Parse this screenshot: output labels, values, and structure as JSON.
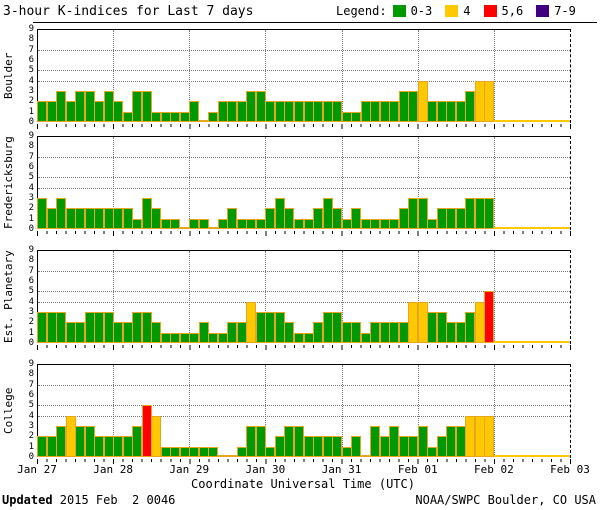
{
  "title": "3-hour K-indices for Last 7 days",
  "legend": {
    "label": "Legend:",
    "items": [
      {
        "label": "0-3",
        "color": "#009A00"
      },
      {
        "label": "4",
        "color": "#FFC800"
      },
      {
        "label": "5,6",
        "color": "#FF0000"
      },
      {
        "label": "7-9",
        "color": "#400080"
      }
    ]
  },
  "colors": {
    "bar_outline": "#E8A520",
    "gridline": "#787878",
    "axis": "#000000"
  },
  "y_axis": {
    "ticks": [
      "9",
      "8",
      "7",
      "6",
      "5",
      "4",
      "3",
      "2",
      "1",
      "0"
    ],
    "range": [
      0,
      9
    ],
    "dotted_gridline_values": [
      4,
      5,
      7
    ]
  },
  "x_axis": {
    "day_labels": [
      "Jan 27",
      "Jan 28",
      "Jan 29",
      "Jan 30",
      "Jan 31",
      "Feb 01",
      "Feb 02",
      "Feb 03"
    ],
    "axis_label": "Coordinate Universal Time (UTC)"
  },
  "footer": {
    "updated_label": "Updated",
    "updated_value": " 2015 Feb  2 0046",
    "credit": "NOAA/SWPC Boulder, CO USA"
  },
  "chart_data": [
    {
      "type": "bar",
      "station": "Boulder",
      "ylim": [
        0,
        9
      ],
      "bars_per_day": 8,
      "days": [
        "Jan 27",
        "Jan 28",
        "Jan 29",
        "Jan 30",
        "Jan 31",
        "Feb 01"
      ],
      "values": [
        2,
        2,
        3,
        2,
        3,
        3,
        2,
        3,
        2,
        1,
        3,
        3,
        1,
        1,
        1,
        1,
        2,
        0,
        1,
        2,
        2,
        2,
        3,
        3,
        2,
        2,
        2,
        2,
        2,
        2,
        2,
        2,
        1,
        1,
        2,
        2,
        2,
        2,
        3,
        3,
        4,
        2,
        2,
        2,
        2,
        3,
        4,
        4
      ]
    },
    {
      "type": "bar",
      "station": "Fredericksburg",
      "ylim": [
        0,
        9
      ],
      "bars_per_day": 8,
      "days": [
        "Jan 27",
        "Jan 28",
        "Jan 29",
        "Jan 30",
        "Jan 31",
        "Feb 01"
      ],
      "values": [
        3,
        2,
        3,
        2,
        2,
        2,
        2,
        2,
        2,
        2,
        1,
        3,
        2,
        1,
        1,
        0,
        1,
        1,
        0,
        1,
        2,
        1,
        1,
        1,
        2,
        3,
        2,
        1,
        1,
        2,
        3,
        2,
        1,
        2,
        1,
        1,
        1,
        1,
        2,
        3,
        3,
        1,
        2,
        2,
        2,
        3,
        3,
        3
      ]
    },
    {
      "type": "bar",
      "station": "Est. Planetary",
      "ylim": [
        0,
        9
      ],
      "bars_per_day": 8,
      "days": [
        "Jan 27",
        "Jan 28",
        "Jan 29",
        "Jan 30",
        "Jan 31",
        "Feb 01"
      ],
      "values": [
        3,
        3,
        3,
        2,
        2,
        3,
        3,
        3,
        2,
        2,
        3,
        3,
        2,
        1,
        1,
        1,
        1,
        2,
        1,
        1,
        2,
        2,
        4,
        3,
        3,
        3,
        2,
        1,
        1,
        2,
        3,
        3,
        2,
        2,
        1,
        2,
        2,
        2,
        2,
        4,
        4,
        3,
        3,
        2,
        2,
        3,
        4,
        5
      ]
    },
    {
      "type": "bar",
      "station": "College",
      "ylim": [
        0,
        9
      ],
      "bars_per_day": 8,
      "days": [
        "Jan 27",
        "Jan 28",
        "Jan 29",
        "Jan 30",
        "Jan 31",
        "Feb 01"
      ],
      "values": [
        2,
        2,
        3,
        4,
        3,
        3,
        2,
        2,
        2,
        2,
        3,
        5,
        4,
        1,
        1,
        1,
        1,
        1,
        1,
        0,
        0,
        1,
        3,
        3,
        1,
        2,
        3,
        3,
        2,
        2,
        2,
        2,
        1,
        2,
        0,
        3,
        2,
        3,
        2,
        2,
        3,
        1,
        2,
        3,
        3,
        4,
        4,
        4
      ]
    }
  ]
}
